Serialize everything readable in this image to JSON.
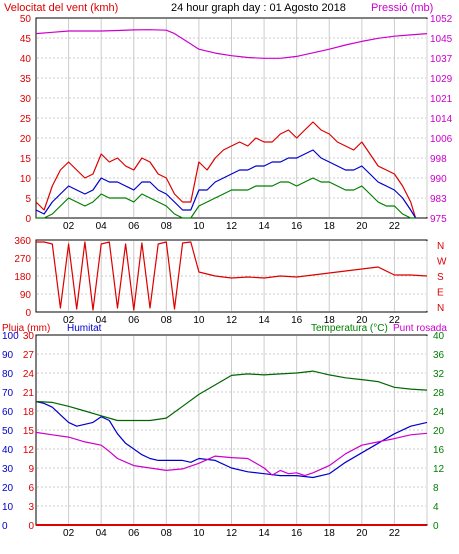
{
  "header": {
    "left_label": "Velocitat del vent (kmh)",
    "title": "24 hour graph day : 01 Agosto 2018",
    "right_label": "Pressió (mb)"
  },
  "x_ticks": [
    "02",
    "04",
    "06",
    "08",
    "10",
    "12",
    "14",
    "16",
    "18",
    "20",
    "22",
    ""
  ],
  "colors": {
    "wind_gust": "#dd0000",
    "wind_avg": "#0000cc",
    "wind_min": "#008000",
    "pressure": "#cc00cc",
    "dir": "#dd0000",
    "hum": "#0000cc",
    "temp": "#006600",
    "dew": "#cc00cc",
    "rain": "#dd0000",
    "grid": "#cccccc"
  },
  "chart_data": [
    {
      "type": "line",
      "title": "24 hour graph day : 01 Agosto 2018",
      "ylabel": "Velocitat del vent (kmh)",
      "y2label": "Pressió (mb)",
      "xlim": [
        0,
        24
      ],
      "ylim": [
        0,
        50
      ],
      "y_ticks": [
        "0",
        "5",
        "10",
        "15",
        "20",
        "25",
        "30",
        "35",
        "40",
        "45",
        "50"
      ],
      "y2_ticks": [
        "975",
        "983",
        "990",
        "998",
        "1006",
        "1014",
        "1021",
        "1029",
        "1037",
        "1045",
        "1052"
      ],
      "series": [
        {
          "name": "",
          "x": [
            0,
            0.5,
            1,
            1.5,
            2,
            2.5,
            3,
            3.5,
            4,
            4.5,
            5,
            5.5,
            6,
            6.5,
            7,
            7.5,
            8,
            8.5,
            9,
            9.5,
            10,
            10.5,
            11,
            11.5,
            12,
            12.5,
            13,
            13.5,
            14,
            14.5,
            15,
            15.5,
            16,
            16.5,
            17,
            17.5,
            18,
            18.5,
            19,
            19.5,
            20,
            20.5,
            21,
            21.5,
            22,
            22.5,
            23,
            23.3
          ],
          "y": [
            4,
            2,
            8,
            12,
            14,
            12,
            10,
            11,
            16,
            14,
            15,
            13,
            12,
            15,
            14,
            11,
            10,
            6,
            4,
            4,
            14,
            12,
            15,
            17,
            18,
            19,
            18,
            20,
            19,
            19,
            21,
            22,
            20,
            22,
            24,
            22,
            21,
            19,
            18,
            17,
            19,
            16,
            13,
            12,
            11,
            8,
            4,
            0
          ]
        },
        {
          "name": "",
          "x": [
            0,
            0.5,
            1,
            1.5,
            2,
            2.5,
            3,
            3.5,
            4,
            4.5,
            5,
            5.5,
            6,
            6.5,
            7,
            7.5,
            8,
            8.5,
            9,
            9.5,
            10,
            10.5,
            11,
            11.5,
            12,
            12.5,
            13,
            13.5,
            14,
            14.5,
            15,
            15.5,
            16,
            16.5,
            17,
            17.5,
            18,
            18.5,
            19,
            19.5,
            20,
            20.5,
            21,
            21.5,
            22,
            22.5,
            23,
            23.3
          ],
          "y": [
            2,
            1,
            4,
            6,
            8,
            7,
            6,
            7,
            10,
            9,
            9,
            8,
            7,
            9,
            9,
            7,
            6,
            4,
            2,
            2,
            7,
            7,
            9,
            10,
            11,
            12,
            12,
            13,
            13,
            14,
            14,
            15,
            15,
            16,
            17,
            15,
            14,
            13,
            12,
            12,
            13,
            11,
            9,
            8,
            7,
            5,
            2,
            0
          ]
        },
        {
          "name": "",
          "x": [
            0,
            0.5,
            1,
            1.5,
            2,
            2.5,
            3,
            3.5,
            4,
            4.5,
            5,
            5.5,
            6,
            6.5,
            7,
            7.5,
            8,
            8.5,
            9,
            9.5,
            10,
            10.5,
            11,
            11.5,
            12,
            12.5,
            13,
            13.5,
            14,
            14.5,
            15,
            15.5,
            16,
            16.5,
            17,
            17.5,
            18,
            18.5,
            19,
            19.5,
            20,
            20.5,
            21,
            21.5,
            22,
            22.5,
            23,
            23.3
          ],
          "y": [
            0,
            0,
            1,
            3,
            5,
            4,
            3,
            4,
            6,
            5,
            5,
            5,
            4,
            6,
            5,
            4,
            3,
            1,
            0,
            0,
            3,
            4,
            5,
            6,
            7,
            7,
            7,
            8,
            8,
            8,
            9,
            9,
            8,
            9,
            10,
            9,
            9,
            8,
            7,
            7,
            8,
            6,
            4,
            3,
            3,
            1,
            0,
            0
          ]
        },
        {
          "name": "",
          "axis": "y2",
          "x": [
            0,
            1,
            2,
            3,
            4,
            5,
            6,
            7,
            8,
            8.5,
            9,
            9.5,
            10,
            11,
            12,
            13,
            14,
            15,
            16,
            17,
            18,
            19,
            20,
            21,
            22,
            23,
            24
          ],
          "y": [
            1046,
            1046.5,
            1047,
            1047,
            1047,
            1047.2,
            1047.4,
            1047.5,
            1047.3,
            1046,
            1044,
            1042,
            1040,
            1038.5,
            1037.5,
            1036.8,
            1036.5,
            1036.5,
            1037.2,
            1038.6,
            1040,
            1041.6,
            1043,
            1044.2,
            1045,
            1045.5,
            1046
          ]
        }
      ]
    },
    {
      "type": "line",
      "xlim": [
        0,
        24
      ],
      "ylim": [
        0,
        360
      ],
      "y_ticks": [
        "0",
        "90",
        "180",
        "270",
        "360"
      ],
      "y2_ticks": [
        "N",
        "W",
        "S",
        "E",
        "N"
      ],
      "series": [
        {
          "name": "",
          "x": [
            0,
            0.5,
            1,
            1.5,
            2,
            2.5,
            3,
            3.5,
            4,
            4.5,
            5,
            5.5,
            6,
            6.5,
            7,
            7.5,
            8,
            8.5,
            9,
            9.5,
            10,
            11,
            12,
            13,
            14,
            15,
            16,
            17,
            18,
            19,
            20,
            21,
            22,
            23,
            24
          ],
          "y": [
            350,
            350,
            340,
            20,
            340,
            15,
            350,
            10,
            340,
            350,
            20,
            340,
            10,
            345,
            20,
            340,
            350,
            15,
            345,
            350,
            200,
            180,
            170,
            175,
            170,
            180,
            175,
            185,
            195,
            205,
            215,
            225,
            185,
            185,
            180
          ]
        }
      ]
    },
    {
      "type": "line",
      "ylabel": "Pluja (mm)",
      "ylabel2": "Humitat",
      "y2label": "Temperatura (°C)",
      "y2label2": "Punt rosada",
      "xlim": [
        0,
        24
      ],
      "ylim": [
        0,
        30
      ],
      "y_ticks": [
        "0",
        "3",
        "6",
        "9",
        "12",
        "15",
        "18",
        "21",
        "24",
        "27",
        "30"
      ],
      "y_ticks_humidity": [
        "0",
        "10",
        "20",
        "30",
        "40",
        "50",
        "60",
        "70",
        "80",
        "90",
        "100"
      ],
      "y2_ticks": [
        "0",
        "4",
        "8",
        "12",
        "16",
        "20",
        "24",
        "28",
        "32",
        "36",
        "40"
      ],
      "series": [
        {
          "name": "",
          "axis": "humidity",
          "x": [
            0,
            0.5,
            1,
            1.5,
            2,
            2.5,
            3,
            3.5,
            4,
            4.5,
            5,
            5.5,
            6,
            6.5,
            7,
            7.5,
            8,
            8.5,
            9,
            9.5,
            10,
            11,
            12,
            13,
            14,
            15,
            16,
            17,
            18,
            19,
            20,
            21,
            22,
            23,
            24
          ],
          "y": [
            65,
            64,
            62,
            58,
            54,
            52,
            53,
            54,
            57,
            55,
            48,
            43,
            40,
            37,
            35,
            34,
            34,
            34,
            34,
            33,
            35,
            34,
            30,
            28,
            27,
            26,
            26,
            25,
            27,
            33,
            38,
            43,
            48,
            52,
            54
          ]
        },
        {
          "name": "",
          "axis": "y2",
          "x": [
            0,
            1,
            2,
            3,
            4,
            5,
            6,
            7,
            8,
            9,
            10,
            11,
            12,
            13,
            14,
            15,
            16,
            17,
            18,
            19,
            20,
            21,
            22,
            23,
            24
          ],
          "y": [
            26,
            25.8,
            25,
            24,
            23,
            22,
            22,
            22,
            22.5,
            25,
            27.5,
            29.5,
            31.5,
            31.8,
            31.6,
            31.8,
            32,
            32.4,
            31.6,
            31,
            30.6,
            30.2,
            29,
            28.6,
            28.4
          ]
        },
        {
          "name": "",
          "axis": "y2",
          "x": [
            0,
            1,
            2,
            3,
            4,
            4.5,
            5,
            6,
            7,
            8,
            9,
            10,
            11,
            12,
            13,
            14,
            14.5,
            15,
            15.5,
            16,
            16.5,
            17,
            18,
            19,
            20,
            21,
            22,
            23,
            24
          ],
          "y": [
            19.5,
            19,
            18.5,
            17.5,
            16.8,
            15.5,
            14,
            12.5,
            12,
            11.5,
            11.8,
            13,
            14.5,
            14.2,
            14,
            12,
            10.5,
            11.5,
            10.8,
            11,
            10.4,
            11,
            12.5,
            15,
            16.8,
            17.5,
            18.2,
            19,
            19.3
          ]
        },
        {
          "name": "",
          "x": [
            0,
            24
          ],
          "y": [
            0,
            0
          ]
        }
      ]
    }
  ]
}
